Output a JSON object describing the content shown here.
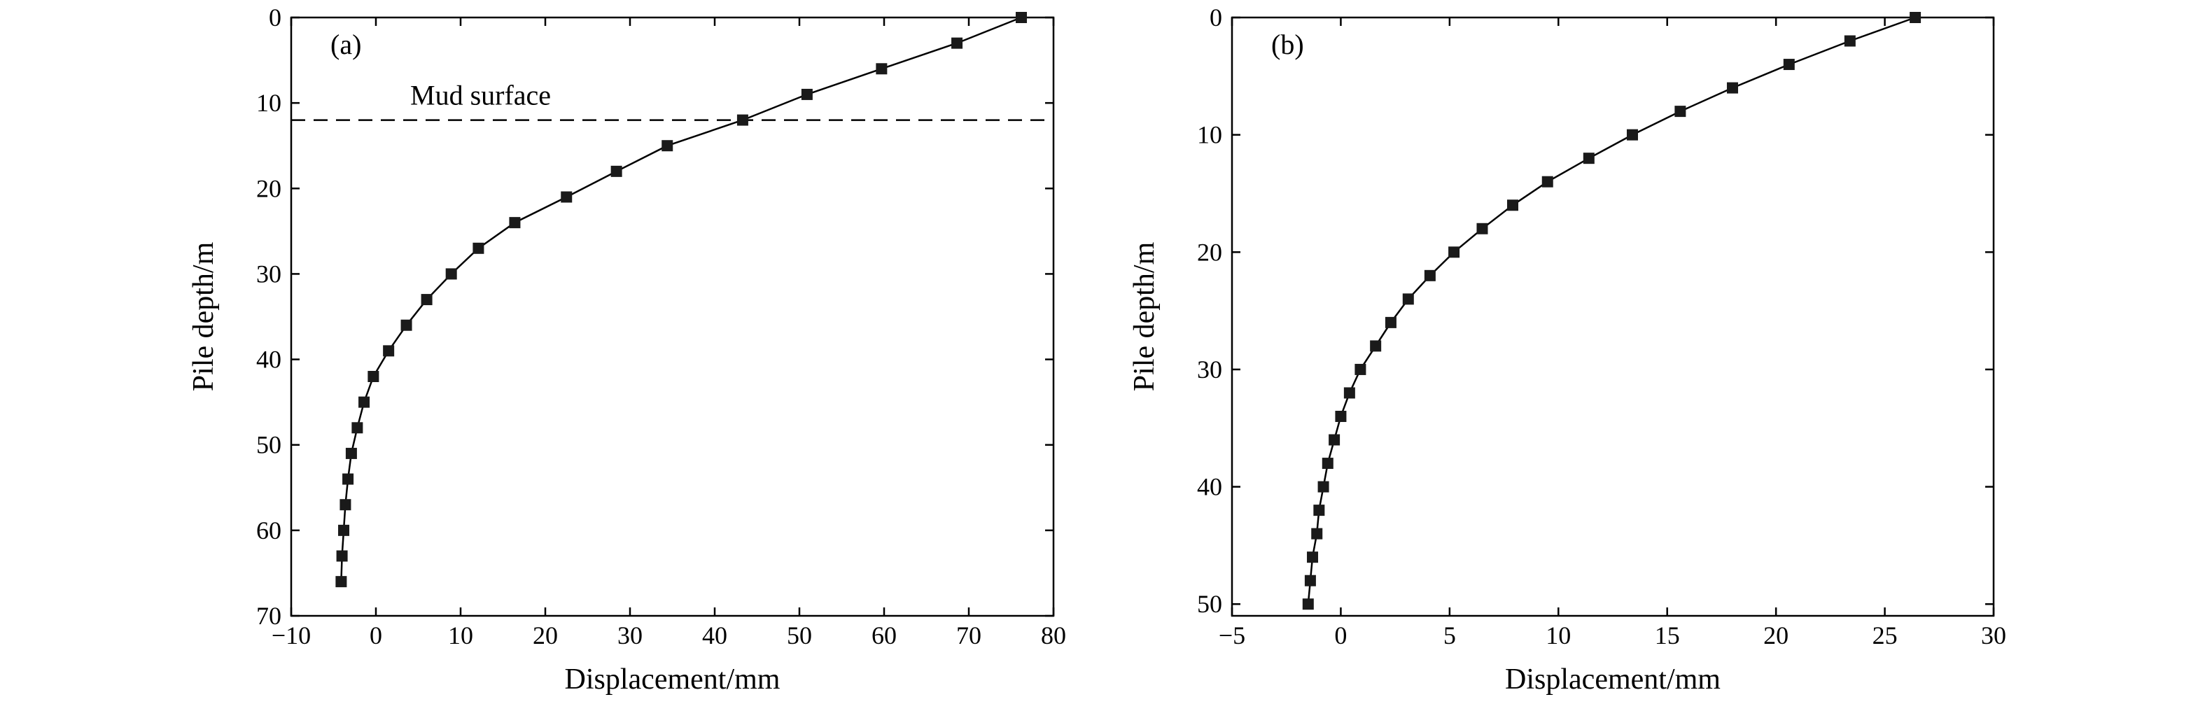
{
  "chart_data": [
    {
      "type": "scatter",
      "panel_label": "(a)",
      "xlabel": "Displacement/mm",
      "ylabel": "Pile depth/m",
      "xlim": [
        -10,
        80
      ],
      "ylim": [
        70,
        0
      ],
      "y_inverted": true,
      "xticks": [
        -10,
        0,
        10,
        20,
        30,
        40,
        50,
        60,
        70,
        80
      ],
      "xtick_labels": [
        "−10",
        "0",
        "10",
        "20",
        "30",
        "40",
        "50",
        "60",
        "70",
        "80"
      ],
      "yticks": [
        0,
        10,
        20,
        30,
        40,
        50,
        60,
        70
      ],
      "ytick_labels": [
        "0",
        "10",
        "20",
        "30",
        "40",
        "50",
        "60",
        "70"
      ],
      "grid": false,
      "series": [
        {
          "marker": "square",
          "connected": true,
          "color": "#000000",
          "x": [
            76.2,
            68.6,
            59.7,
            50.9,
            43.3,
            34.4,
            28.4,
            22.5,
            16.4,
            12.1,
            8.9,
            6.0,
            3.6,
            1.5,
            -0.3,
            -1.4,
            -2.2,
            -2.9,
            -3.3,
            -3.6,
            -3.8,
            -4.0,
            -4.1
          ],
          "y": [
            0,
            3,
            6,
            9,
            12,
            15,
            18,
            21,
            24,
            27,
            30,
            33,
            36,
            39,
            42,
            45,
            48,
            51,
            54,
            57,
            60,
            63,
            66
          ]
        }
      ],
      "annotations": [
        {
          "text": "Mud surface",
          "type": "horizontal-dashed-line",
          "y": 12
        }
      ]
    },
    {
      "type": "scatter",
      "panel_label": "(b)",
      "xlabel": "Displacement/mm",
      "ylabel": "Pile depth/m",
      "xlim": [
        -5,
        30
      ],
      "ylim": [
        51,
        0
      ],
      "y_inverted": true,
      "xticks": [
        -5,
        0,
        5,
        10,
        15,
        20,
        25,
        30
      ],
      "xtick_labels": [
        "−5",
        "0",
        "5",
        "10",
        "15",
        "20",
        "25",
        "30"
      ],
      "yticks": [
        0,
        10,
        20,
        30,
        40,
        50
      ],
      "ytick_labels": [
        "0",
        "10",
        "20",
        "30",
        "40",
        "50"
      ],
      "grid": false,
      "series": [
        {
          "marker": "square",
          "connected": true,
          "color": "#000000",
          "x": [
            26.4,
            23.4,
            20.6,
            18.0,
            15.6,
            13.4,
            11.4,
            9.5,
            7.9,
            6.5,
            5.2,
            4.1,
            3.1,
            2.3,
            1.6,
            0.9,
            0.4,
            0.0,
            -0.3,
            -0.6,
            -0.8,
            -1.0,
            -1.1,
            -1.3,
            -1.4,
            -1.5
          ],
          "y": [
            0,
            2,
            4,
            6,
            8,
            10,
            12,
            14,
            16,
            18,
            20,
            22,
            24,
            26,
            28,
            30,
            32,
            34,
            36,
            38,
            40,
            42,
            44,
            46,
            48,
            50
          ]
        }
      ]
    }
  ]
}
